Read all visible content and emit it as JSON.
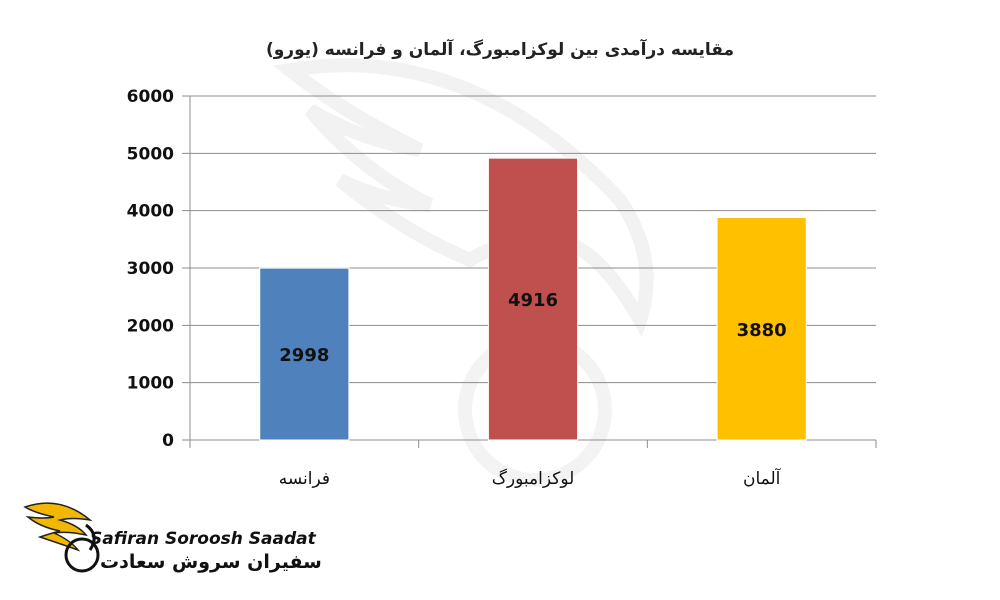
{
  "chart_data": {
    "type": "bar",
    "title": "مقایسه درآمدی بین لوکزامبورگ، آلمان و فرانسه (یورو)",
    "categories": [
      "فرانسه",
      "لوکزامبورگ",
      "آلمان"
    ],
    "values": [
      2998,
      4916,
      3880
    ],
    "data_labels": [
      "2998",
      "4916",
      "3880"
    ],
    "bar_colors": [
      "#4f81bd",
      "#c0504d",
      "#ffc000"
    ],
    "ylim": [
      0,
      6000
    ],
    "yticks": [
      0,
      1000,
      2000,
      3000,
      4000,
      5000,
      6000
    ],
    "grid": true,
    "legend": "none"
  },
  "watermark": {
    "brand_en": "Safiran Soroosh Saadat",
    "brand_fa": "سفیران سروش سعادت",
    "accent_color": "#f2b705"
  }
}
